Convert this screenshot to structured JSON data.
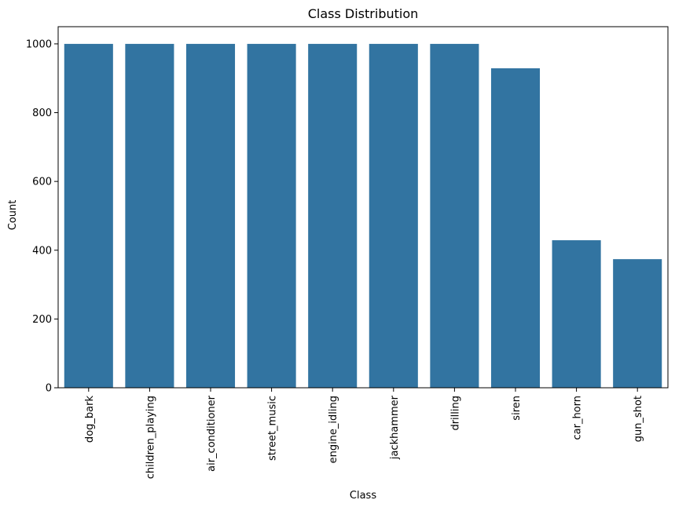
{
  "chart_data": {
    "type": "bar",
    "title": "Class Distribution",
    "xlabel": "Class",
    "ylabel": "Count",
    "categories": [
      "dog_bark",
      "children_playing",
      "air_conditioner",
      "street_music",
      "engine_idling",
      "jackhammer",
      "drilling",
      "siren",
      "car_horn",
      "gun_shot"
    ],
    "values": [
      1000,
      1000,
      1000,
      1000,
      1000,
      1000,
      1000,
      929,
      429,
      374
    ],
    "ylim": [
      0,
      1050
    ],
    "yticks": [
      0,
      200,
      400,
      600,
      800,
      1000
    ],
    "bar_color": "#3274a1",
    "grid": false,
    "legend": "none"
  }
}
